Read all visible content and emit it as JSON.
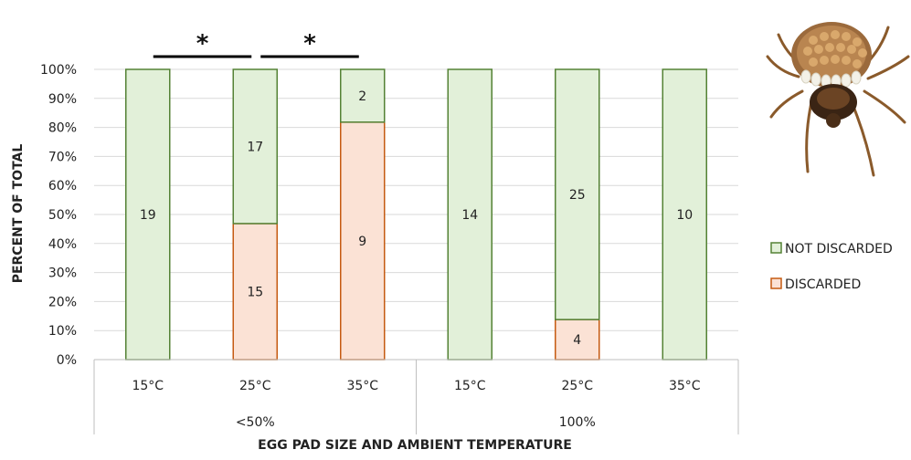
{
  "chart_data": {
    "type": "bar",
    "stacked": true,
    "normalized_percent": true,
    "xlabel": "EGG PAD SIZE AND AMBIENT TEMPERATURE",
    "ylabel": "PERCENT OF TOTAL",
    "ylim": [
      0,
      100
    ],
    "yticks": [
      "0%",
      "10%",
      "20%",
      "30%",
      "40%",
      "50%",
      "60%",
      "70%",
      "80%",
      "90%",
      "100%"
    ],
    "categories": [
      "15°C",
      "25°C",
      "35°C",
      "15°C",
      "25°C",
      "35°C"
    ],
    "groups": [
      {
        "label": "<50%",
        "count": 3
      },
      {
        "label": "100%",
        "count": 3
      }
    ],
    "series": [
      {
        "name": "DISCARDED",
        "counts": [
          0,
          15,
          9,
          0,
          4,
          0
        ],
        "color": "#fbe2d5",
        "stroke": "#c55a11"
      },
      {
        "name": "NOT DISCARDED",
        "counts": [
          19,
          17,
          2,
          14,
          25,
          10
        ],
        "color": "#e2f0d9",
        "stroke": "#548235"
      }
    ],
    "series_labels": {
      "DISCARDED": [
        "",
        "15",
        "9",
        "",
        "4",
        ""
      ],
      "NOT DISCARDED": [
        "19",
        "17",
        "2",
        "14",
        "25",
        "10"
      ]
    },
    "significance": [
      {
        "from": 0,
        "to": 1,
        "label": "*"
      },
      {
        "from": 1,
        "to": 2,
        "label": "*"
      }
    ],
    "grid": true,
    "legend_position": "right",
    "legend_order": [
      "NOT DISCARDED",
      "DISCARDED"
    ],
    "image": "tick-egg-pad-photo"
  }
}
